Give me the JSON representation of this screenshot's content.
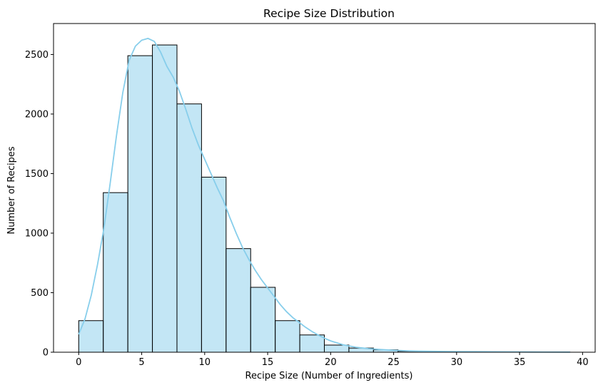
{
  "chart_data": {
    "type": "histogram",
    "title": "Recipe Size Distribution",
    "xlabel": "Recipe Size (Number of Ingredients)",
    "ylabel": "Number of Recipes",
    "xlim": [
      -2,
      41
    ],
    "ylim": [
      0,
      2760
    ],
    "xticks": [
      0,
      5,
      10,
      15,
      20,
      25,
      30,
      35,
      40
    ],
    "yticks": [
      0,
      500,
      1000,
      1500,
      2000,
      2500
    ],
    "grid": false,
    "legend": "none",
    "colors": {
      "bar_fill": "#87ceeb",
      "bar_fill_opacity": 0.5,
      "bar_edge": "#000000",
      "kde_line": "#87ceeb"
    },
    "bins": [
      {
        "start": 0,
        "end": 1.95,
        "count": 265
      },
      {
        "start": 1.95,
        "end": 3.9,
        "count": 1340
      },
      {
        "start": 3.9,
        "end": 5.85,
        "count": 2490
      },
      {
        "start": 5.85,
        "end": 7.8,
        "count": 2580
      },
      {
        "start": 7.8,
        "end": 9.75,
        "count": 2085
      },
      {
        "start": 9.75,
        "end": 11.7,
        "count": 1470
      },
      {
        "start": 11.7,
        "end": 13.65,
        "count": 870
      },
      {
        "start": 13.65,
        "end": 15.6,
        "count": 545
      },
      {
        "start": 15.6,
        "end": 17.55,
        "count": 265
      },
      {
        "start": 17.55,
        "end": 19.5,
        "count": 145
      },
      {
        "start": 19.5,
        "end": 21.45,
        "count": 60
      },
      {
        "start": 21.45,
        "end": 23.4,
        "count": 35
      },
      {
        "start": 23.4,
        "end": 25.35,
        "count": 20
      },
      {
        "start": 25.35,
        "end": 27.3,
        "count": 8
      },
      {
        "start": 27.3,
        "end": 29.25,
        "count": 5
      },
      {
        "start": 29.25,
        "end": 31.2,
        "count": 4
      },
      {
        "start": 31.2,
        "end": 33.15,
        "count": 3
      },
      {
        "start": 33.15,
        "end": 35.1,
        "count": 2
      },
      {
        "start": 35.1,
        "end": 37.05,
        "count": 2
      },
      {
        "start": 37.05,
        "end": 39.0,
        "count": 1
      }
    ],
    "kde": {
      "x": [
        0,
        0.5,
        1,
        1.5,
        2,
        2.5,
        3,
        3.5,
        4,
        4.5,
        5,
        5.5,
        6,
        6.5,
        7,
        7.5,
        8,
        8.5,
        9,
        9.5,
        10,
        10.5,
        11,
        11.5,
        12,
        12.5,
        13,
        13.5,
        14,
        14.5,
        15,
        15.5,
        16,
        16.5,
        17,
        17.5,
        18,
        18.5,
        19,
        19.5,
        20,
        21,
        22,
        23,
        24,
        25,
        26,
        27,
        28,
        30,
        32,
        34,
        36,
        39
      ],
      "y": [
        150,
        280,
        480,
        740,
        1040,
        1420,
        1820,
        2180,
        2450,
        2570,
        2620,
        2635,
        2610,
        2520,
        2400,
        2310,
        2190,
        2040,
        1880,
        1740,
        1620,
        1500,
        1380,
        1270,
        1130,
        1000,
        880,
        780,
        690,
        610,
        540,
        470,
        400,
        340,
        290,
        250,
        210,
        175,
        145,
        118,
        95,
        62,
        42,
        30,
        22,
        16,
        12,
        9,
        7,
        5,
        4,
        3,
        2,
        1
      ]
    }
  }
}
